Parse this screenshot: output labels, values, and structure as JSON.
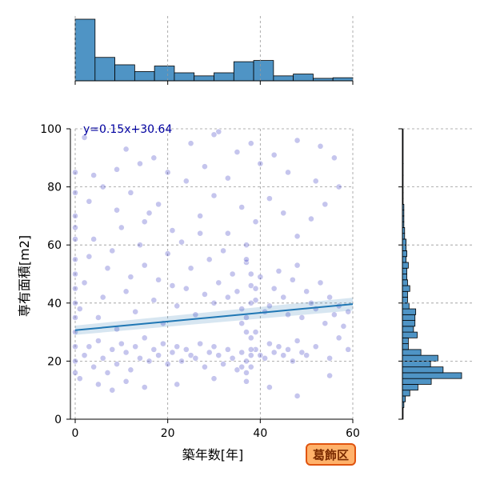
{
  "chart_data": {
    "type": "scatter",
    "xlabel": "築年数[年]",
    "ylabel": "専有面積[m2]",
    "xlim": [
      0,
      60
    ],
    "ylim": [
      0,
      100
    ],
    "xticks": [
      0,
      20,
      40,
      60
    ],
    "yticks": [
      0,
      20,
      40,
      60,
      80,
      100
    ],
    "grid": true,
    "annotation": "y=0.15x+30.64",
    "region_badge": "葛飾区",
    "regression": {
      "slope": 0.15,
      "intercept": 30.64
    },
    "point_color": "#3030c0",
    "line_color": "#1f77b4",
    "hist_color": "#4f94c5",
    "marginal_x_hist": {
      "bin_edges": [
        0,
        4.29,
        8.57,
        12.86,
        17.14,
        21.43,
        25.71,
        30,
        34.29,
        38.57,
        42.86,
        47.14,
        51.43,
        55.71,
        60
      ],
      "heights": [
        100,
        38,
        26,
        15,
        24,
        13,
        8,
        13,
        31,
        33,
        8,
        11,
        4,
        5
      ]
    },
    "marginal_y_hist": {
      "bin_edges": [
        0,
        4,
        6,
        8,
        10,
        12,
        14,
        16,
        18,
        20,
        22,
        24,
        26,
        28,
        30,
        32,
        34,
        36,
        38,
        40,
        42,
        44,
        46,
        48,
        50,
        52,
        54,
        56,
        58,
        60,
        62,
        64,
        66,
        68,
        70,
        72,
        74,
        76,
        78,
        80,
        84,
        88,
        100
      ],
      "heights": [
        1,
        2,
        4,
        10,
        21,
        39,
        80,
        55,
        38,
        48,
        25,
        8,
        8,
        20,
        15,
        17,
        17,
        18,
        9,
        7,
        7,
        10,
        7,
        6,
        6,
        8,
        5,
        6,
        5,
        5,
        3,
        3,
        2,
        2,
        2,
        2,
        1,
        1,
        1,
        1,
        1,
        1
      ]
    },
    "points": [
      [
        1,
        14
      ],
      [
        2,
        22
      ],
      [
        3,
        25
      ],
      [
        4,
        18
      ],
      [
        5,
        27
      ],
      [
        6,
        21
      ],
      [
        7,
        16
      ],
      [
        8,
        24
      ],
      [
        9,
        19
      ],
      [
        10,
        26
      ],
      [
        11,
        23
      ],
      [
        12,
        17
      ],
      [
        13,
        25
      ],
      [
        14,
        21
      ],
      [
        15,
        28
      ],
      [
        16,
        20
      ],
      [
        17,
        24
      ],
      [
        18,
        22
      ],
      [
        19,
        26
      ],
      [
        20,
        19
      ],
      [
        21,
        23
      ],
      [
        22,
        25
      ],
      [
        23,
        20
      ],
      [
        24,
        24
      ],
      [
        25,
        22
      ],
      [
        26,
        21
      ],
      [
        27,
        26
      ],
      [
        28,
        18
      ],
      [
        29,
        23
      ],
      [
        30,
        25
      ],
      [
        31,
        22
      ],
      [
        32,
        19
      ],
      [
        33,
        24
      ],
      [
        34,
        21
      ],
      [
        35,
        17
      ],
      [
        36,
        23
      ],
      [
        37,
        20
      ],
      [
        38,
        18
      ],
      [
        39,
        24
      ],
      [
        40,
        22
      ],
      [
        41,
        21
      ],
      [
        42,
        26
      ],
      [
        43,
        23
      ],
      [
        44,
        25
      ],
      [
        45,
        22
      ],
      [
        46,
        24
      ],
      [
        47,
        20
      ],
      [
        48,
        27
      ],
      [
        49,
        23
      ],
      [
        50,
        22
      ],
      [
        52,
        25
      ],
      [
        55,
        21
      ],
      [
        57,
        28
      ],
      [
        59,
        24
      ],
      [
        0,
        30
      ],
      [
        0,
        45
      ],
      [
        0,
        55
      ],
      [
        0,
        62
      ],
      [
        0,
        70
      ],
      [
        0,
        35
      ],
      [
        0,
        25
      ],
      [
        0,
        20
      ],
      [
        0,
        40
      ],
      [
        0,
        50
      ],
      [
        0,
        66
      ],
      [
        0,
        78
      ],
      [
        0,
        85
      ],
      [
        0,
        16
      ],
      [
        1,
        38
      ],
      [
        2,
        47
      ],
      [
        3,
        56
      ],
      [
        4,
        62
      ],
      [
        5,
        35
      ],
      [
        6,
        42
      ],
      [
        7,
        52
      ],
      [
        8,
        58
      ],
      [
        9,
        31
      ],
      [
        10,
        66
      ],
      [
        11,
        44
      ],
      [
        12,
        49
      ],
      [
        13,
        37
      ],
      [
        14,
        60
      ],
      [
        15,
        53
      ],
      [
        16,
        71
      ],
      [
        17,
        41
      ],
      [
        18,
        48
      ],
      [
        19,
        33
      ],
      [
        20,
        57
      ],
      [
        21,
        46
      ],
      [
        22,
        39
      ],
      [
        23,
        61
      ],
      [
        24,
        45
      ],
      [
        25,
        52
      ],
      [
        26,
        36
      ],
      [
        27,
        64
      ],
      [
        28,
        43
      ],
      [
        29,
        55
      ],
      [
        30,
        40
      ],
      [
        31,
        47
      ],
      [
        32,
        58
      ],
      [
        33,
        42
      ],
      [
        34,
        50
      ],
      [
        35,
        44
      ],
      [
        36,
        38
      ],
      [
        37,
        54
      ],
      [
        38,
        46
      ],
      [
        39,
        41
      ],
      [
        40,
        49
      ],
      [
        41,
        37
      ],
      [
        42,
        39
      ],
      [
        43,
        45
      ],
      [
        44,
        51
      ],
      [
        45,
        42
      ],
      [
        46,
        36
      ],
      [
        47,
        48
      ],
      [
        48,
        53
      ],
      [
        49,
        35
      ],
      [
        50,
        44
      ],
      [
        51,
        40
      ],
      [
        52,
        38
      ],
      [
        53,
        47
      ],
      [
        54,
        33
      ],
      [
        55,
        42
      ],
      [
        56,
        36
      ],
      [
        57,
        39
      ],
      [
        58,
        32
      ],
      [
        59,
        37
      ],
      [
        3,
        75
      ],
      [
        6,
        80
      ],
      [
        9,
        72
      ],
      [
        12,
        78
      ],
      [
        15,
        68
      ],
      [
        18,
        74
      ],
      [
        21,
        65
      ],
      [
        24,
        82
      ],
      [
        27,
        70
      ],
      [
        30,
        77
      ],
      [
        33,
        64
      ],
      [
        36,
        73
      ],
      [
        39,
        68
      ],
      [
        42,
        76
      ],
      [
        45,
        71
      ],
      [
        48,
        63
      ],
      [
        51,
        69
      ],
      [
        54,
        74
      ],
      [
        2,
        97
      ],
      [
        11,
        93
      ],
      [
        17,
        90
      ],
      [
        25,
        95
      ],
      [
        31,
        99
      ],
      [
        30,
        98
      ],
      [
        35,
        92
      ],
      [
        38,
        95
      ],
      [
        43,
        91
      ],
      [
        48,
        96
      ],
      [
        53,
        94
      ],
      [
        56,
        90
      ],
      [
        4,
        84
      ],
      [
        9,
        86
      ],
      [
        14,
        88
      ],
      [
        20,
        85
      ],
      [
        28,
        87
      ],
      [
        33,
        83
      ],
      [
        40,
        88
      ],
      [
        46,
        85
      ],
      [
        52,
        82
      ],
      [
        57,
        80
      ],
      [
        5,
        12
      ],
      [
        8,
        10
      ],
      [
        11,
        13
      ],
      [
        15,
        11
      ],
      [
        22,
        12
      ],
      [
        30,
        14
      ],
      [
        37,
        13
      ],
      [
        42,
        11
      ],
      [
        48,
        8
      ],
      [
        55,
        15
      ],
      [
        37,
        30
      ],
      [
        37,
        35
      ],
      [
        38,
        40
      ],
      [
        38,
        50
      ],
      [
        37,
        55
      ],
      [
        38,
        28
      ],
      [
        36,
        33
      ],
      [
        39,
        45
      ],
      [
        37,
        60
      ],
      [
        38,
        22
      ],
      [
        36,
        18
      ],
      [
        37,
        16
      ],
      [
        38,
        24
      ],
      [
        39,
        30
      ]
    ]
  }
}
